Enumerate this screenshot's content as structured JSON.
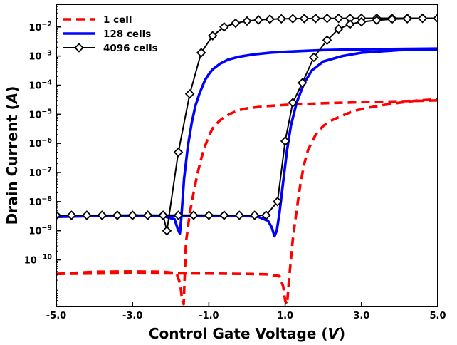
{
  "chart_data": {
    "type": "line",
    "xlabel": "Control Gate Voltage",
    "xlabel_unit": "V",
    "ylabel": "Drain Current",
    "ylabel_unit": "A",
    "y_scale": "log",
    "xlim": [
      -5,
      5
    ],
    "ylim": [
      2.5e-12,
      0.06
    ],
    "x_ticks": [
      -5,
      -3,
      -1,
      1,
      3,
      5
    ],
    "x_tick_labels": [
      "-5.0",
      "-3.0",
      "-1.0",
      "1.0",
      "3.0",
      "5.0"
    ],
    "y_tick_exponents": [
      -10,
      -9,
      -8,
      -7,
      -6,
      -5,
      -4,
      -3,
      -2
    ],
    "y_tick_base": "10",
    "grid": false,
    "legend_position": "top-left",
    "series": [
      {
        "name": "1 cell",
        "color": "#ff0000",
        "style": "dashed",
        "branches": [
          {
            "x": [
              -5.0,
              -4.0,
              -3.0,
              -2.2,
              -1.85,
              -1.75,
              -1.7,
              -1.66,
              -1.6,
              -1.5,
              -1.4,
              -1.3,
              -1.2,
              -1.1,
              -1.0,
              -0.9,
              -0.75,
              -0.6,
              -0.4,
              -0.2,
              0.0,
              0.5,
              1.0,
              1.5,
              2.0,
              3.0,
              4.0,
              5.0
            ],
            "y": [
              3.3e-11,
              3.9e-11,
              4e-11,
              3.9e-11,
              3.5e-11,
              1.5e-11,
              4e-12,
              3e-12,
              4e-10,
              4e-09,
              2e-08,
              9e-08,
              3e-07,
              8e-07,
              1.8e-06,
              3.3e-06,
              5.5e-06,
              8e-06,
              1.1e-05,
              1.4e-05,
              1.6e-05,
              1.9e-05,
              2.1e-05,
              2.25e-05,
              2.4e-05,
              2.6e-05,
              2.8e-05,
              3e-05
            ]
          },
          {
            "x": [
              -5.0,
              -3.0,
              -1.0,
              0.0,
              0.5,
              0.85,
              0.95,
              1.0,
              1.05,
              1.1,
              1.2,
              1.3,
              1.4,
              1.5,
              1.6,
              1.8,
              2.0,
              2.2,
              2.5,
              2.8,
              3.2,
              3.6,
              4.0,
              4.5,
              5.0
            ],
            "y": [
              3.3e-11,
              3.5e-11,
              3.4e-11,
              3.3e-11,
              3.2e-11,
              2.8e-11,
              1.2e-11,
              4e-12,
              3e-12,
              2e-11,
              5e-10,
              5e-09,
              4e-08,
              2e-07,
              6e-07,
              2e-06,
              4e-06,
              6e-06,
              9e-06,
              1.3e-05,
              1.7e-05,
              2.1e-05,
              2.5e-05,
              3e-05,
              3.3e-05
            ]
          }
        ]
      },
      {
        "name": "128 cells",
        "color": "#0000ff",
        "style": "solid",
        "branches": [
          {
            "x": [
              -5.0,
              -4.0,
              -3.0,
              -2.2,
              -1.9,
              -1.82,
              -1.76,
              -1.72,
              -1.65,
              -1.55,
              -1.45,
              -1.35,
              -1.25,
              -1.1,
              -1.0,
              -0.9,
              -0.7,
              -0.5,
              -0.2,
              0.2,
              0.6,
              1.0,
              1.5,
              2.0,
              3.0,
              4.0,
              5.0
            ],
            "y": [
              3e-09,
              3.2e-09,
              3.3e-09,
              3.2e-09,
              2.5e-09,
              1.2e-09,
              8e-10,
              3e-09,
              6e-08,
              8e-07,
              5e-06,
              2e-05,
              5e-05,
              0.00015,
              0.00024,
              0.00035,
              0.00055,
              0.00075,
              0.00095,
              0.00115,
              0.0013,
              0.0014,
              0.0015,
              0.0016,
              0.0017,
              0.00175,
              0.0018
            ]
          },
          {
            "x": [
              -5.0,
              -3.0,
              -1.0,
              0.0,
              0.3,
              0.55,
              0.65,
              0.72,
              0.78,
              0.85,
              0.95,
              1.05,
              1.15,
              1.3,
              1.5,
              1.7,
              2.0,
              2.5,
              3.0,
              4.0,
              5.0
            ],
            "y": [
              3.2e-09,
              3.3e-09,
              3.3e-09,
              3.2e-09,
              3e-09,
              2.2e-09,
              1.3e-09,
              6.5e-10,
              1e-09,
              4e-09,
              5e-08,
              6e-07,
              4e-06,
              2.5e-05,
              0.00012,
              0.00032,
              0.00065,
              0.001,
              0.0013,
              0.0016,
              0.0017
            ]
          }
        ]
      },
      {
        "name": "4096 cells",
        "color": "#000000",
        "style": "solid",
        "marker": "diamond",
        "branches": [
          {
            "x": [
              -5.0,
              -4.6,
              -4.2,
              -3.8,
              -3.4,
              -3.0,
              -2.6,
              -2.2,
              -2.1,
              -1.8,
              -1.5,
              -1.2,
              -0.9,
              -0.6,
              -0.3,
              0.0,
              0.3,
              0.6,
              0.9,
              1.2,
              1.5,
              1.8,
              2.1,
              2.4,
              2.7,
              3.0,
              3.4,
              3.8,
              4.2,
              4.6,
              5.0
            ],
            "y": [
              3.4e-09,
              3.4e-09,
              3.4e-09,
              3.4e-09,
              3.4e-09,
              3.4e-09,
              3.4e-09,
              3.4e-09,
              1e-09,
              5e-07,
              5e-05,
              0.0013,
              0.005,
              0.01,
              0.0135,
              0.016,
              0.0175,
              0.0185,
              0.019,
              0.0193,
              0.0195,
              0.0196,
              0.0197,
              0.0198,
              0.0199,
              0.0199,
              0.02,
              0.02,
              0.02,
              0.02,
              0.02
            ]
          },
          {
            "x": [
              -5.0,
              -4.6,
              -4.2,
              -3.8,
              -3.4,
              -3.0,
              -2.6,
              -2.2,
              -1.8,
              -1.4,
              -1.0,
              -0.6,
              -0.2,
              0.2,
              0.5,
              0.8,
              1.0,
              1.2,
              1.45,
              1.75,
              2.1,
              2.4,
              2.7,
              3.0,
              3.4,
              3.8,
              4.2,
              4.6,
              5.0
            ],
            "y": [
              3.4e-09,
              3.4e-09,
              3.4e-09,
              3.4e-09,
              3.4e-09,
              3.4e-09,
              3.4e-09,
              3.4e-09,
              3.4e-09,
              3.4e-09,
              3.4e-09,
              3.4e-09,
              3.4e-09,
              3.4e-09,
              3.4e-09,
              1e-08,
              1.2e-06,
              2.5e-05,
              0.00012,
              0.0009,
              0.0035,
              0.0085,
              0.0125,
              0.015,
              0.017,
              0.0185,
              0.0192,
              0.0197,
              0.02
            ]
          }
        ]
      }
    ]
  }
}
